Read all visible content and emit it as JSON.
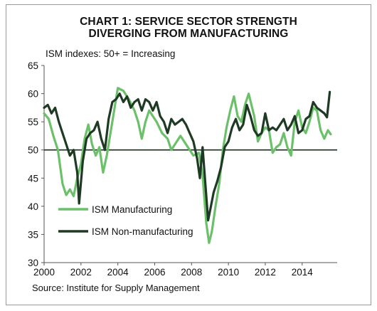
{
  "chart_data": {
    "type": "line",
    "title_line1": "CHART 1: SERVICE SECTOR STRENGTH",
    "title_line2": "DIVERGING FROM MANUFACTURING",
    "subtitle": "ISM indexes: 50+ = Increasing",
    "source": "Source: Institute for Supply Management",
    "xlabel": "",
    "ylabel": "",
    "xlim": [
      2000,
      2015.9
    ],
    "ylim": [
      30,
      65
    ],
    "x_ticks": [
      2000,
      2002,
      2004,
      2006,
      2008,
      2010,
      2012,
      2014
    ],
    "y_ticks": [
      30,
      35,
      40,
      45,
      50,
      55,
      60,
      65
    ],
    "reference_line": 50,
    "grid": false,
    "legend_position": "lower-left",
    "series": [
      {
        "name": "ISM Manufacturing",
        "color": "#6cc06a",
        "points": [
          [
            2000.0,
            56.5
          ],
          [
            2000.25,
            55.5
          ],
          [
            2000.5,
            52.5
          ],
          [
            2000.75,
            50.0
          ],
          [
            2001.0,
            44.0
          ],
          [
            2001.2,
            42.0
          ],
          [
            2001.4,
            43.0
          ],
          [
            2001.6,
            41.8
          ],
          [
            2001.8,
            45.0
          ],
          [
            2002.0,
            47.5
          ],
          [
            2002.2,
            52.0
          ],
          [
            2002.4,
            54.5
          ],
          [
            2002.6,
            51.0
          ],
          [
            2002.8,
            49.0
          ],
          [
            2003.0,
            50.5
          ],
          [
            2003.2,
            46.0
          ],
          [
            2003.4,
            49.0
          ],
          [
            2003.6,
            53.0
          ],
          [
            2003.8,
            57.0
          ],
          [
            2004.0,
            61.0
          ],
          [
            2004.3,
            60.5
          ],
          [
            2004.6,
            59.0
          ],
          [
            2004.9,
            57.0
          ],
          [
            2005.1,
            55.0
          ],
          [
            2005.3,
            52.0
          ],
          [
            2005.5,
            55.0
          ],
          [
            2005.7,
            57.0
          ],
          [
            2005.9,
            56.0
          ],
          [
            2006.1,
            55.0
          ],
          [
            2006.4,
            53.0
          ],
          [
            2006.7,
            52.0
          ],
          [
            2006.9,
            50.0
          ],
          [
            2007.1,
            51.0
          ],
          [
            2007.4,
            52.5
          ],
          [
            2007.7,
            51.0
          ],
          [
            2007.9,
            50.0
          ],
          [
            2008.1,
            49.0
          ],
          [
            2008.4,
            49.5
          ],
          [
            2008.6,
            45.5
          ],
          [
            2008.8,
            37.0
          ],
          [
            2008.95,
            33.5
          ],
          [
            2009.1,
            35.5
          ],
          [
            2009.3,
            40.0
          ],
          [
            2009.5,
            44.0
          ],
          [
            2009.7,
            50.0
          ],
          [
            2009.9,
            54.0
          ],
          [
            2010.1,
            57.0
          ],
          [
            2010.3,
            59.5
          ],
          [
            2010.5,
            56.0
          ],
          [
            2010.7,
            55.0
          ],
          [
            2010.9,
            58.0
          ],
          [
            2011.1,
            60.0
          ],
          [
            2011.4,
            56.0
          ],
          [
            2011.6,
            51.5
          ],
          [
            2011.8,
            53.0
          ],
          [
            2012.0,
            54.0
          ],
          [
            2012.2,
            53.5
          ],
          [
            2012.4,
            49.5
          ],
          [
            2012.6,
            50.5
          ],
          [
            2012.8,
            51.0
          ],
          [
            2013.0,
            53.0
          ],
          [
            2013.2,
            50.5
          ],
          [
            2013.4,
            49.0
          ],
          [
            2013.6,
            55.0
          ],
          [
            2013.8,
            57.0
          ],
          [
            2014.0,
            54.0
          ],
          [
            2014.2,
            53.0
          ],
          [
            2014.4,
            55.0
          ],
          [
            2014.6,
            57.5
          ],
          [
            2014.8,
            57.0
          ],
          [
            2015.0,
            53.5
          ],
          [
            2015.2,
            52.0
          ],
          [
            2015.4,
            53.5
          ],
          [
            2015.55,
            52.8
          ]
        ]
      },
      {
        "name": "ISM Non-manufacturing",
        "color": "#1f3a24",
        "points": [
          [
            2000.0,
            57.5
          ],
          [
            2000.2,
            58.0
          ],
          [
            2000.4,
            56.5
          ],
          [
            2000.6,
            57.5
          ],
          [
            2000.8,
            55.0
          ],
          [
            2001.0,
            53.0
          ],
          [
            2001.2,
            51.0
          ],
          [
            2001.4,
            49.0
          ],
          [
            2001.6,
            50.0
          ],
          [
            2001.8,
            46.0
          ],
          [
            2001.9,
            40.5
          ],
          [
            2002.1,
            48.0
          ],
          [
            2002.3,
            52.0
          ],
          [
            2002.5,
            53.0
          ],
          [
            2002.7,
            53.5
          ],
          [
            2002.9,
            55.0
          ],
          [
            2003.1,
            52.0
          ],
          [
            2003.3,
            50.0
          ],
          [
            2003.5,
            55.5
          ],
          [
            2003.7,
            58.5
          ],
          [
            2003.9,
            59.0
          ],
          [
            2004.1,
            60.0
          ],
          [
            2004.3,
            58.5
          ],
          [
            2004.5,
            59.5
          ],
          [
            2004.7,
            57.5
          ],
          [
            2004.9,
            58.5
          ],
          [
            2005.1,
            59.0
          ],
          [
            2005.3,
            57.0
          ],
          [
            2005.5,
            59.0
          ],
          [
            2005.7,
            58.5
          ],
          [
            2005.9,
            57.0
          ],
          [
            2006.1,
            58.5
          ],
          [
            2006.3,
            56.0
          ],
          [
            2006.5,
            55.0
          ],
          [
            2006.7,
            53.0
          ],
          [
            2006.9,
            55.5
          ],
          [
            2007.1,
            54.5
          ],
          [
            2007.3,
            55.0
          ],
          [
            2007.5,
            55.5
          ],
          [
            2007.7,
            54.5
          ],
          [
            2007.9,
            53.0
          ],
          [
            2008.1,
            51.5
          ],
          [
            2008.3,
            48.5
          ],
          [
            2008.45,
            45.0
          ],
          [
            2008.6,
            50.5
          ],
          [
            2008.75,
            44.0
          ],
          [
            2008.9,
            37.5
          ],
          [
            2009.05,
            40.0
          ],
          [
            2009.2,
            42.5
          ],
          [
            2009.4,
            44.5
          ],
          [
            2009.6,
            47.0
          ],
          [
            2009.8,
            50.5
          ],
          [
            2010.0,
            51.5
          ],
          [
            2010.2,
            54.0
          ],
          [
            2010.4,
            55.5
          ],
          [
            2010.6,
            53.5
          ],
          [
            2010.8,
            54.5
          ],
          [
            2011.0,
            58.0
          ],
          [
            2011.2,
            56.0
          ],
          [
            2011.4,
            53.5
          ],
          [
            2011.6,
            52.5
          ],
          [
            2011.8,
            53.0
          ],
          [
            2012.0,
            56.5
          ],
          [
            2012.2,
            53.5
          ],
          [
            2012.4,
            54.0
          ],
          [
            2012.6,
            53.5
          ],
          [
            2012.8,
            54.5
          ],
          [
            2013.0,
            55.5
          ],
          [
            2013.2,
            53.5
          ],
          [
            2013.4,
            54.5
          ],
          [
            2013.6,
            56.0
          ],
          [
            2013.8,
            53.0
          ],
          [
            2014.0,
            53.5
          ],
          [
            2014.2,
            55.5
          ],
          [
            2014.4,
            56.0
          ],
          [
            2014.6,
            58.5
          ],
          [
            2014.8,
            57.5
          ],
          [
            2015.0,
            57.0
          ],
          [
            2015.2,
            56.5
          ],
          [
            2015.35,
            55.8
          ],
          [
            2015.5,
            60.3
          ]
        ]
      }
    ]
  }
}
